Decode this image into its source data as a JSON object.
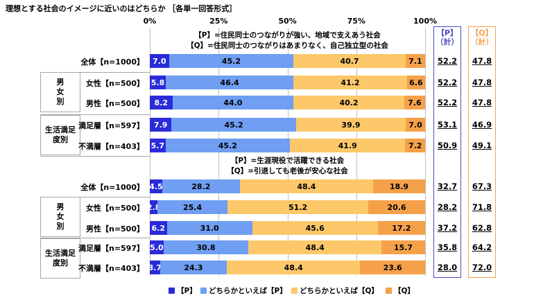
{
  "title": "理想とする社会のイメージに近いのはどちらか ［各単一回答形式］",
  "colors": {
    "P": "#2b2bd9",
    "leanP": "#6f9ef2",
    "leanQ": "#fcc86a",
    "Q": "#f5a14a",
    "boxP": "#4a4ac4",
    "boxQ": "#f3a24c"
  },
  "column_headers": {
    "p_sum": "【P】\n（計）",
    "q_sum": "【Q】\n（計）"
  },
  "chart_data": {
    "type": "bar",
    "orientation": "horizontal",
    "stacked": true,
    "title": "理想とする社会のイメージに近いのはどちらか ［各単一回答形式］",
    "xlim": [
      0,
      100
    ],
    "x_ticks": [
      "0%",
      "25%",
      "50%",
      "75%",
      "100%"
    ],
    "legend": [
      "【P】",
      "どちらかといえば【P】",
      "どちらかといえば【Q】",
      "【Q】"
    ],
    "legend_placement": "bottom",
    "sections": [
      {
        "note_lines": [
          "【P】=住民同士のつながりが強い、地域で支えあう社会",
          "【Q】=住民同士のつながりはあまりなく、自己独立型の社会"
        ],
        "groups": [
          {
            "name": "",
            "rows": [
              {
                "label": "全体【n=1000】",
                "values": [
                  7.0,
                  45.2,
                  40.7,
                  7.1
                ],
                "p_sum": "52.2",
                "q_sum": "47.8"
              }
            ]
          },
          {
            "name": "男女別",
            "rows": [
              {
                "label": "女性【n=500】",
                "values": [
                  5.8,
                  46.4,
                  41.2,
                  6.6
                ],
                "p_sum": "52.2",
                "q_sum": "47.8"
              },
              {
                "label": "男性【n=500】",
                "values": [
                  8.2,
                  44.0,
                  40.2,
                  7.6
                ],
                "p_sum": "52.2",
                "q_sum": "47.8"
              }
            ]
          },
          {
            "name": "生活満足度別",
            "rows": [
              {
                "label": "満足層【n=597】",
                "values": [
                  7.9,
                  45.2,
                  39.9,
                  7.0
                ],
                "p_sum": "53.1",
                "q_sum": "46.9"
              },
              {
                "label": "不満層【n=403】",
                "values": [
                  5.7,
                  45.2,
                  41.9,
                  7.2
                ],
                "p_sum": "50.9",
                "q_sum": "49.1"
              }
            ]
          }
        ]
      },
      {
        "note_lines": [
          "【P】=生涯現役で活躍できる社会",
          "【Q】=引退しても老後が安心な社会"
        ],
        "groups": [
          {
            "name": "",
            "rows": [
              {
                "label": "全体【n=1000】",
                "values": [
                  4.5,
                  28.2,
                  48.4,
                  18.9
                ],
                "p_sum": "32.7",
                "q_sum": "67.3"
              }
            ]
          },
          {
            "name": "男女別",
            "rows": [
              {
                "label": "女性【n=500】",
                "values": [
                  2.8,
                  25.4,
                  51.2,
                  20.6
                ],
                "p_sum": "28.2",
                "q_sum": "71.8"
              },
              {
                "label": "男性【n=500】",
                "values": [
                  6.2,
                  31.0,
                  45.6,
                  17.2
                ],
                "p_sum": "37.2",
                "q_sum": "62.8"
              }
            ]
          },
          {
            "name": "生活満足度別",
            "rows": [
              {
                "label": "満足層【n=597】",
                "values": [
                  5.0,
                  30.8,
                  48.4,
                  15.7
                ],
                "p_sum": "35.8",
                "q_sum": "64.2"
              },
              {
                "label": "不満層【n=403】",
                "values": [
                  3.7,
                  24.3,
                  48.4,
                  23.6
                ],
                "p_sum": "28.0",
                "q_sum": "72.0"
              }
            ]
          }
        ]
      }
    ]
  }
}
